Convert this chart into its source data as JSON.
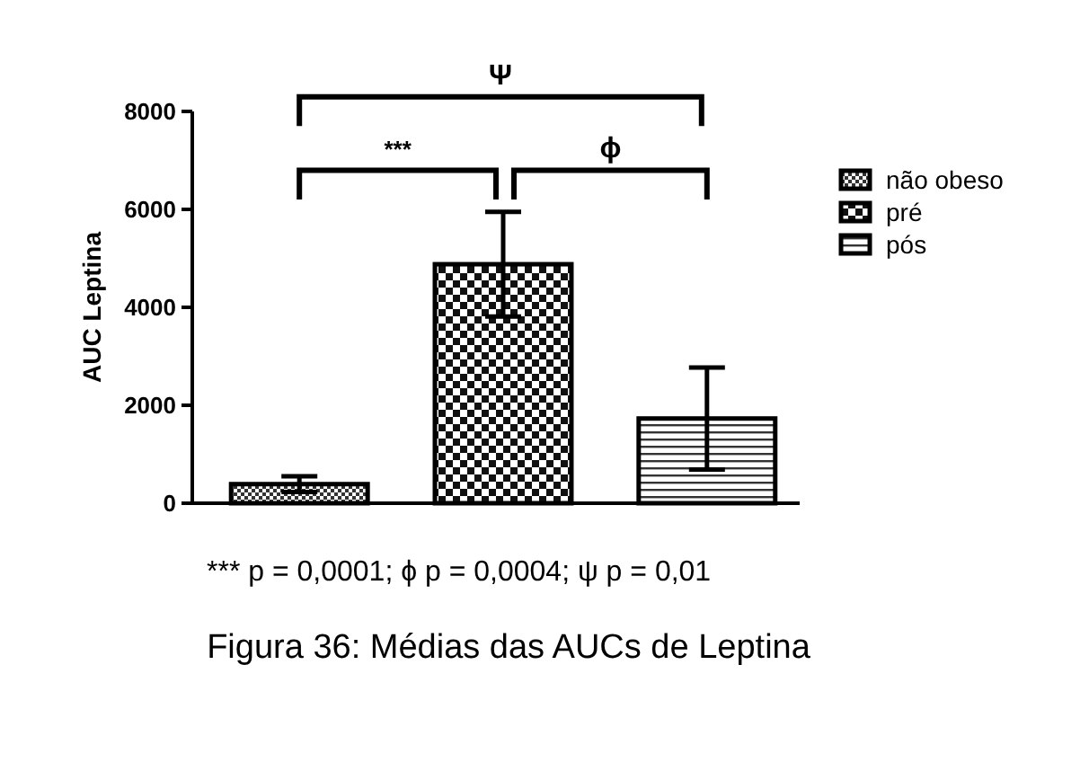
{
  "chart_data": {
    "type": "bar",
    "ylabel": "AUC Leptina",
    "categories": [
      null,
      null,
      null
    ],
    "series": [
      {
        "name": "não obeso",
        "color": "#000000",
        "values": [
          390,
          null,
          null
        ],
        "errors": [
          160,
          null,
          null
        ]
      },
      {
        "name": "pré",
        "color": "#000000",
        "values": [
          null,
          4880,
          null
        ],
        "errors": [
          null,
          1070,
          null
        ]
      },
      {
        "name": "pós",
        "color": "#000000",
        "values": [
          null,
          null,
          1730
        ],
        "errors": [
          null,
          null,
          1040
        ]
      }
    ],
    "ylim": [
      0,
      8000
    ],
    "yticks": [
      0,
      2000,
      4000,
      6000,
      8000
    ],
    "legend": "top right",
    "annotations": [
      "***",
      "ϕ",
      "Ψ",
      "*** p = 0,0001; ϕ p = 0,0004; ψ p = 0,01",
      "Figura 36: Médias das AUCs de Leptina"
    ]
  }
}
